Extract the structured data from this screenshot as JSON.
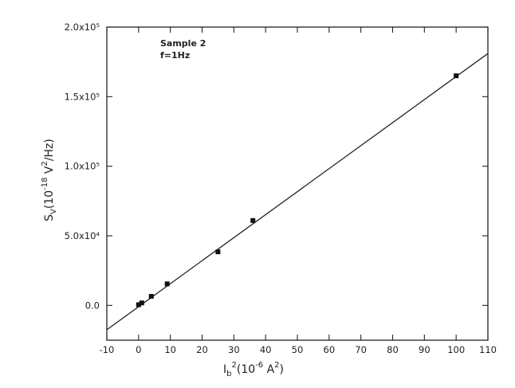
{
  "chart_data": {
    "type": "scatter",
    "annotation": {
      "line1": "Sample 2",
      "line2": "f=1Hz"
    },
    "xlabel": {
      "main": "I",
      "sub": "b",
      "sup": "2",
      "rest": "(10",
      "exp": "-6",
      "unit": " A",
      "unitsup": "2",
      "close": ")"
    },
    "ylabel": {
      "main": "S",
      "sub": "V",
      "rest": "(10",
      "exp": "-18",
      "unit": " V",
      "unitsup": "2",
      "close": "/Hz)"
    },
    "xlim": [
      -10,
      110
    ],
    "ylim": [
      -25000,
      200000
    ],
    "xticks": [
      -10,
      0,
      10,
      20,
      30,
      40,
      50,
      60,
      70,
      80,
      90,
      100,
      110
    ],
    "xtick_labels": [
      "-10",
      "0",
      "10",
      "20",
      "30",
      "40",
      "50",
      "60",
      "70",
      "80",
      "90",
      "100",
      "110"
    ],
    "yticks": [
      0,
      50000,
      100000,
      150000,
      200000
    ],
    "ytick_labels": [
      "0.0",
      "5.0x10⁴",
      "1.0x10⁵",
      "1.5x10⁵",
      "2.0x10⁵"
    ],
    "series": [
      {
        "points": [
          {
            "x": 0,
            "y": 500
          },
          {
            "x": 1,
            "y": 1800
          },
          {
            "x": 4,
            "y": 6500
          },
          {
            "x": 9,
            "y": 15500
          },
          {
            "x": 25,
            "y": 38500
          },
          {
            "x": 36,
            "y": 61000
          },
          {
            "x": 100,
            "y": 165000
          }
        ]
      }
    ],
    "fit_line": {
      "x": [
        -10,
        110
      ],
      "y": [
        -17500,
        181000
      ]
    },
    "grid": false,
    "legend": "none"
  }
}
